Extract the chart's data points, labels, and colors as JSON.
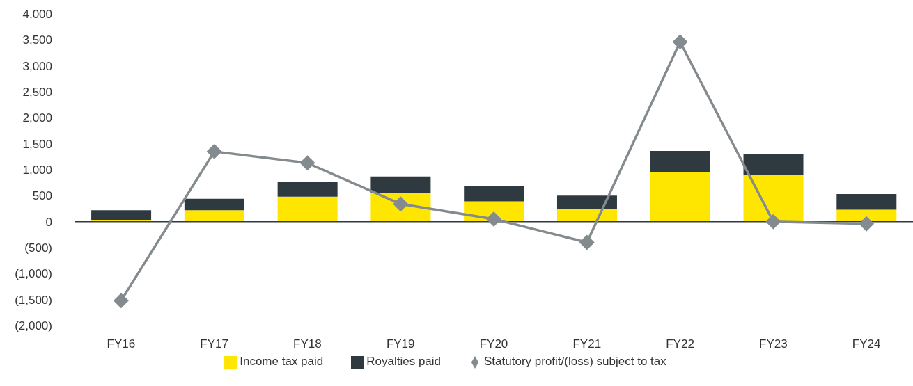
{
  "chart_data": {
    "type": "bar",
    "stacked": true,
    "categories": [
      "FY16",
      "FY17",
      "FY18",
      "FY19",
      "FY20",
      "FY21",
      "FY22",
      "FY23",
      "FY24"
    ],
    "series": [
      {
        "name": "Income tax paid",
        "color": "#ffe600",
        "values": [
          30,
          220,
          480,
          550,
          390,
          250,
          960,
          900,
          230
        ]
      },
      {
        "name": "Royalties paid",
        "color": "#2e3a40",
        "values": [
          190,
          220,
          280,
          320,
          300,
          250,
          400,
          400,
          300
        ]
      },
      {
        "name": "Statutory profit/(loss) subject to tax",
        "type": "line",
        "color": "#848b8e",
        "marker": "diamond",
        "values": [
          -1520,
          1350,
          1130,
          340,
          50,
          -400,
          3460,
          0,
          -40
        ]
      }
    ],
    "ylim": [
      -2000,
      4000
    ],
    "yticks": [
      {
        "value": -2000,
        "label": "(2,000)"
      },
      {
        "value": -1500,
        "label": "(1,500)"
      },
      {
        "value": -1000,
        "label": "(1,000)"
      },
      {
        "value": -500,
        "label": "(500)"
      },
      0,
      500,
      {
        "value": 1000,
        "label": "1,000"
      },
      {
        "value": 1500,
        "label": "1,500"
      },
      {
        "value": 2000,
        "label": "2,000"
      },
      {
        "value": 2500,
        "label": "2,500"
      },
      {
        "value": 3000,
        "label": "3,000"
      },
      {
        "value": 3500,
        "label": "3,500"
      },
      {
        "value": 4000,
        "label": "4,000"
      }
    ],
    "legend": "bottom"
  }
}
